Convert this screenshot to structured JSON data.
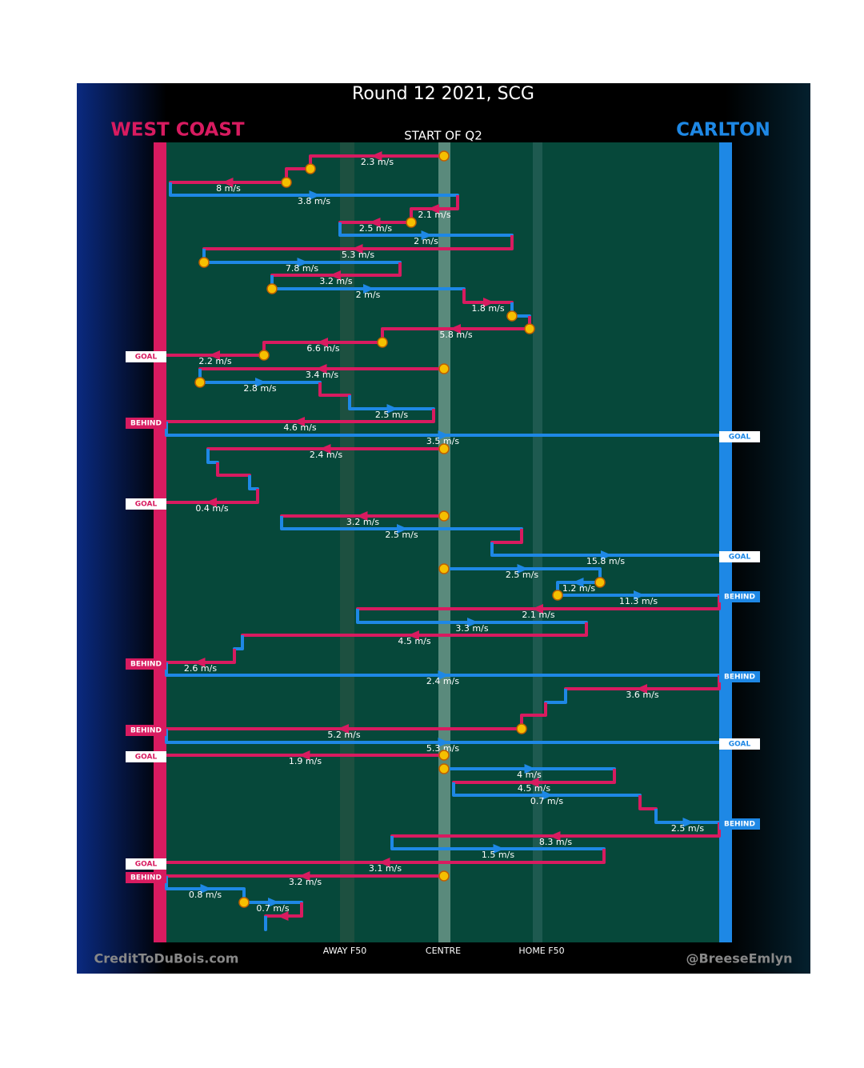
{
  "header": {
    "title": "Round 12 2021, SCG",
    "subtitle": "START OF Q2",
    "home_team": "WEST COAST",
    "away_team": "CARLTON"
  },
  "zones": [
    "AWAY F50",
    "CENTRE",
    "HOME F50"
  ],
  "credits": [
    "CreditToDuBois.com",
    "@BreeseEmlyn"
  ],
  "speeds": [
    "2.3 m/s",
    "8 m/s",
    "3.8 m/s",
    "2.1 m/s",
    "2.5 m/s",
    "2 m/s",
    "5.3 m/s",
    "7.8 m/s",
    "3.2 m/s",
    "2 m/s",
    "1.8 m/s",
    "5.8 m/s",
    "6.6 m/s",
    "2.2 m/s",
    "3.4 m/s",
    "2.8 m/s",
    "2.5 m/s",
    "4.6 m/s",
    "3.5 m/s",
    "2.4 m/s",
    "0.4 m/s",
    "3.2 m/s",
    "2.5 m/s",
    "15.8 m/s",
    "2.5 m/s",
    "1.2 m/s",
    "11.3 m/s",
    "2.1 m/s",
    "3.3 m/s",
    "4.5 m/s",
    "2.6 m/s",
    "2.4 m/s",
    "3.6 m/s",
    "5.2 m/s",
    "5.3 m/s",
    "1.9 m/s",
    "4 m/s",
    "4.5 m/s",
    "0.7 m/s",
    "2.5 m/s",
    "8.3 m/s",
    "1.5 m/s",
    "3.1 m/s",
    "3.2 m/s",
    "0.8 m/s",
    "0.7 m/s"
  ],
  "outcomes": [
    {
      "label": "GOAL",
      "side": "left"
    },
    {
      "label": "BEHIND",
      "side": "left"
    },
    {
      "label": "GOAL",
      "side": "right"
    },
    {
      "label": "GOAL",
      "side": "left"
    },
    {
      "label": "GOAL",
      "side": "right"
    },
    {
      "label": "BEHIND",
      "side": "right"
    },
    {
      "label": "BEHIND",
      "side": "left"
    },
    {
      "label": "BEHIND",
      "side": "right"
    },
    {
      "label": "BEHIND",
      "side": "left"
    },
    {
      "label": "GOAL",
      "side": "right"
    },
    {
      "label": "GOAL",
      "side": "left"
    },
    {
      "label": "BEHIND",
      "side": "right"
    },
    {
      "label": "GOAL",
      "side": "left"
    },
    {
      "label": "BEHIND",
      "side": "left"
    }
  ]
}
